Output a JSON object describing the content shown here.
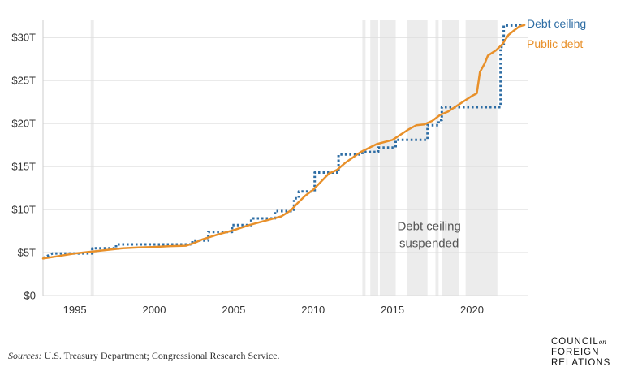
{
  "chart_data": {
    "type": "line",
    "title": "",
    "xlabel": "",
    "ylabel": "",
    "xlim": [
      1993,
      2023.5
    ],
    "ylim": [
      0,
      32
    ],
    "x_ticks": [
      1995,
      2000,
      2005,
      2010,
      2015,
      2020
    ],
    "y_ticks": [
      {
        "value": 0,
        "label": "$0"
      },
      {
        "value": 5,
        "label": "$5T"
      },
      {
        "value": 10,
        "label": "$10T"
      },
      {
        "value": 15,
        "label": "$15T"
      },
      {
        "value": 20,
        "label": "$20T"
      },
      {
        "value": 25,
        "label": "$25T"
      },
      {
        "value": 30,
        "label": "$30T"
      }
    ],
    "grid": "horizontal",
    "legend": "direct labels top-right",
    "suspension_periods": [
      [
        1996.0,
        1996.2
      ],
      [
        2013.1,
        2013.3
      ],
      [
        2013.6,
        2014.1
      ],
      [
        2014.2,
        2015.2
      ],
      [
        2015.9,
        2017.2
      ],
      [
        2017.7,
        2017.9
      ],
      [
        2018.1,
        2019.2
      ],
      [
        2019.6,
        2021.6
      ]
    ],
    "annotation": {
      "lines": [
        "Debt ceiling",
        "suspended"
      ],
      "x": 2017.3,
      "y": 7.6
    },
    "series": [
      {
        "name": "Debt ceiling",
        "color": "#2e6da4",
        "style": "dotted-step",
        "points": [
          [
            1993.0,
            4.35
          ],
          [
            1993.6,
            4.9
          ],
          [
            1996.1,
            4.9
          ],
          [
            1996.1,
            5.5
          ],
          [
            1997.6,
            5.5
          ],
          [
            1997.6,
            5.95
          ],
          [
            2002.4,
            5.95
          ],
          [
            2002.4,
            6.4
          ],
          [
            2003.4,
            6.4
          ],
          [
            2003.4,
            7.38
          ],
          [
            2004.9,
            7.38
          ],
          [
            2004.9,
            8.18
          ],
          [
            2006.1,
            8.18
          ],
          [
            2006.1,
            8.97
          ],
          [
            2007.6,
            8.97
          ],
          [
            2007.6,
            9.82
          ],
          [
            2008.8,
            9.82
          ],
          [
            2008.8,
            11.3
          ],
          [
            2009.1,
            11.3
          ],
          [
            2009.1,
            12.1
          ],
          [
            2010.1,
            12.1
          ],
          [
            2010.1,
            14.3
          ],
          [
            2011.6,
            14.3
          ],
          [
            2011.6,
            16.4
          ],
          [
            2013.1,
            16.4
          ],
          [
            2013.1,
            16.7
          ],
          [
            2014.1,
            16.7
          ],
          [
            2014.1,
            17.2
          ],
          [
            2015.2,
            17.2
          ],
          [
            2015.2,
            18.1
          ],
          [
            2017.2,
            18.1
          ],
          [
            2017.2,
            19.8
          ],
          [
            2017.9,
            19.8
          ],
          [
            2017.9,
            20.4
          ],
          [
            2018.1,
            20.4
          ],
          [
            2018.1,
            21.9
          ],
          [
            2021.8,
            21.9
          ],
          [
            2021.8,
            28.9
          ],
          [
            2022.0,
            28.9
          ],
          [
            2022.0,
            31.4
          ],
          [
            2023.3,
            31.4
          ]
        ]
      },
      {
        "name": "Public debt",
        "color": "#e8902a",
        "style": "solid",
        "points": [
          [
            1993.0,
            4.3
          ],
          [
            1994.0,
            4.6
          ],
          [
            1995.0,
            4.9
          ],
          [
            1996.0,
            5.1
          ],
          [
            1997.0,
            5.3
          ],
          [
            1998.0,
            5.5
          ],
          [
            1999.0,
            5.6
          ],
          [
            2000.0,
            5.65
          ],
          [
            2001.0,
            5.75
          ],
          [
            2002.0,
            5.8
          ],
          [
            2002.5,
            6.1
          ],
          [
            2003.0,
            6.5
          ],
          [
            2004.0,
            7.1
          ],
          [
            2005.0,
            7.6
          ],
          [
            2006.0,
            8.2
          ],
          [
            2007.0,
            8.7
          ],
          [
            2008.0,
            9.2
          ],
          [
            2008.6,
            9.9
          ],
          [
            2009.0,
            10.7
          ],
          [
            2009.5,
            11.6
          ],
          [
            2010.0,
            12.3
          ],
          [
            2011.0,
            14.2
          ],
          [
            2011.5,
            14.6
          ],
          [
            2012.0,
            15.4
          ],
          [
            2013.0,
            16.7
          ],
          [
            2014.0,
            17.6
          ],
          [
            2015.0,
            18.1
          ],
          [
            2016.0,
            19.3
          ],
          [
            2016.5,
            19.8
          ],
          [
            2017.0,
            19.9
          ],
          [
            2017.5,
            20.3
          ],
          [
            2018.0,
            21.0
          ],
          [
            2018.5,
            21.4
          ],
          [
            2019.0,
            22.0
          ],
          [
            2019.5,
            22.6
          ],
          [
            2020.0,
            23.2
          ],
          [
            2020.3,
            23.5
          ],
          [
            2020.5,
            26.0
          ],
          [
            2020.8,
            27.0
          ],
          [
            2021.0,
            27.9
          ],
          [
            2021.5,
            28.5
          ],
          [
            2021.9,
            29.2
          ],
          [
            2022.3,
            30.3
          ],
          [
            2022.7,
            30.9
          ],
          [
            2023.0,
            31.3
          ],
          [
            2023.3,
            31.45
          ]
        ]
      }
    ]
  },
  "footer": {
    "source_label": "Sources:",
    "source_text": " U.S. Treasury Department; Congressional Research Service."
  },
  "logo": {
    "line1": "COUNCIL",
    "line1_small": "on",
    "line2": "FOREIGN",
    "line3": "RELATIONS"
  }
}
